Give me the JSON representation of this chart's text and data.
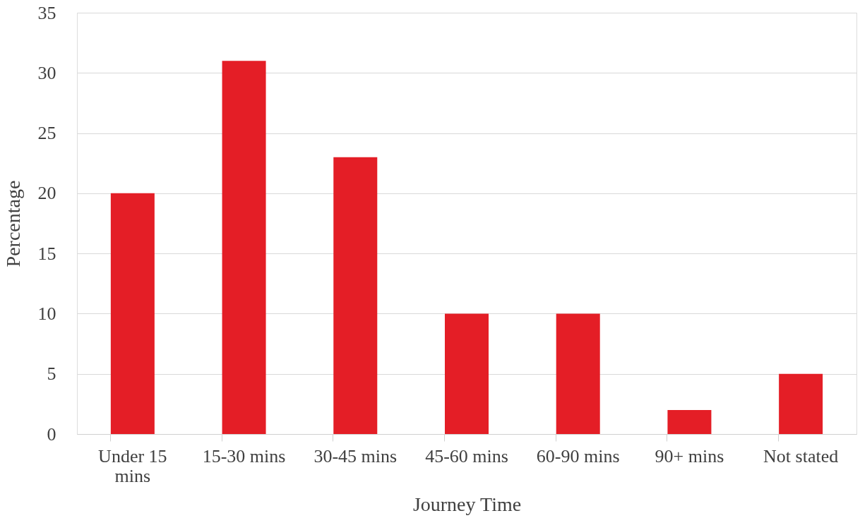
{
  "chart_data": {
    "type": "bar",
    "xlabel": "Journey Time",
    "ylabel": "Percentage",
    "categories": [
      "Under 15 mins",
      "15-30 mins",
      "30-45 mins",
      "45-60 mins",
      "60-90 mins",
      "90+ mins",
      "Not stated"
    ],
    "values": [
      20,
      31,
      23,
      10,
      10,
      2,
      5
    ],
    "color": "#e41e26",
    "ylim": [
      0,
      35
    ],
    "yticks": [
      0,
      5,
      10,
      15,
      20,
      25,
      30,
      35
    ],
    "grid": "y"
  }
}
